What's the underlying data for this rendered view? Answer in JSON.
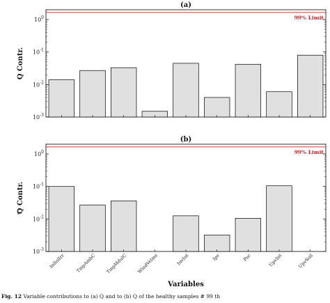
{
  "chart_data": [
    {
      "type": "bar",
      "title": "(a)",
      "ylabel": "Q Contr.",
      "yscale": "log",
      "ylim": [
        0.001,
        2
      ],
      "yticks": [
        "10^0",
        "10^-1",
        "10^-2",
        "10^-3"
      ],
      "categories": [
        "InSolIrr",
        "TmpAmbC",
        "TmpMdulC",
        "WindVelms",
        "InvInt",
        "Ipv",
        "Pac",
        "UpvInt",
        "UpvSoll"
      ],
      "values": [
        0.014,
        0.027,
        0.033,
        0.0015,
        0.045,
        0.004,
        0.042,
        0.006,
        0.08
      ],
      "limit": {
        "value": 1.65,
        "label": "99% Limit",
        "color": "#e8302a"
      },
      "bar_color": "#e0e0e0",
      "show_xticklabels": false
    },
    {
      "type": "bar",
      "title": "(b)",
      "ylabel": "Q Contr.",
      "yscale": "log",
      "ylim": [
        0.001,
        2
      ],
      "yticks": [
        "10^0",
        "10^-1",
        "10^-2",
        "10^-3"
      ],
      "categories": [
        "InSolIrr",
        "TmpAmbC",
        "TmpMdulC",
        "WindVelms",
        "InvInt",
        "Ipv",
        "Pac",
        "UpvInt",
        "UpvSoll"
      ],
      "values": [
        0.1,
        0.027,
        0.036,
        null,
        0.0125,
        0.0032,
        0.0105,
        0.105,
        null
      ],
      "limit": {
        "value": 1.65,
        "label": "99% Limit",
        "color": "#e8302a"
      },
      "bar_color": "#e0e0e0",
      "show_xticklabels": true,
      "xlabel": "Variables"
    }
  ],
  "caption": {
    "prefix": "Fig. 12",
    "text": "Variable contributions to (a) Q and to (b) Q of the healthy samples # 99 th"
  }
}
